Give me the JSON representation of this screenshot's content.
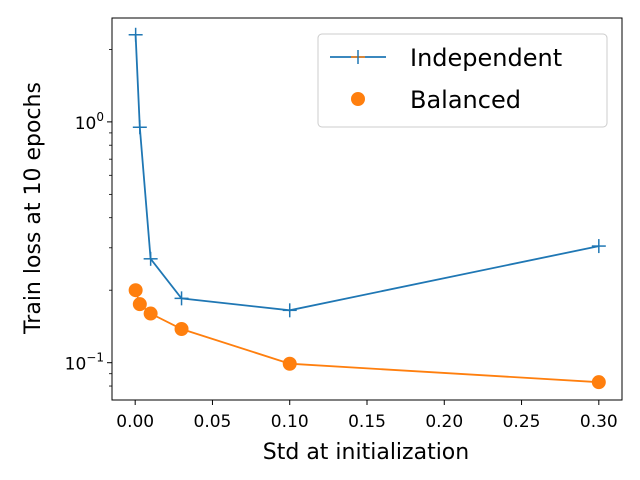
{
  "chart_data": {
    "type": "line",
    "title": "",
    "xlabel": "Std at initialization",
    "ylabel": "Train loss at 10 epochs",
    "yscale": "log",
    "xlim": [
      -0.015,
      0.315
    ],
    "ylim": [
      0.07,
      2.7
    ],
    "x_ticks": [
      0.0,
      0.05,
      0.1,
      0.15,
      0.2,
      0.25,
      0.3
    ],
    "x_tick_labels": [
      "0.00",
      "0.05",
      "0.10",
      "0.15",
      "0.20",
      "0.25",
      "0.30"
    ],
    "y_major_ticks": [
      0.1,
      1.0
    ],
    "y_tick_labels": [
      {
        "base": "10",
        "exp": "−1"
      },
      {
        "base": "10",
        "exp": "0"
      }
    ],
    "legend_position": "top-right",
    "series": [
      {
        "name": "Independent",
        "color": "#1f77b4",
        "marker": "plus",
        "x": [
          0.0003,
          0.003,
          0.01,
          0.03,
          0.1,
          0.3
        ],
        "y": [
          2.3,
          0.95,
          0.27,
          0.185,
          0.165,
          0.305
        ]
      },
      {
        "name": "Balanced",
        "color": "#ff7f0e",
        "marker": "circle",
        "x": [
          0.0003,
          0.003,
          0.01,
          0.03,
          0.1,
          0.3
        ],
        "y": [
          0.2,
          0.175,
          0.16,
          0.138,
          0.099,
          0.083
        ]
      }
    ]
  }
}
